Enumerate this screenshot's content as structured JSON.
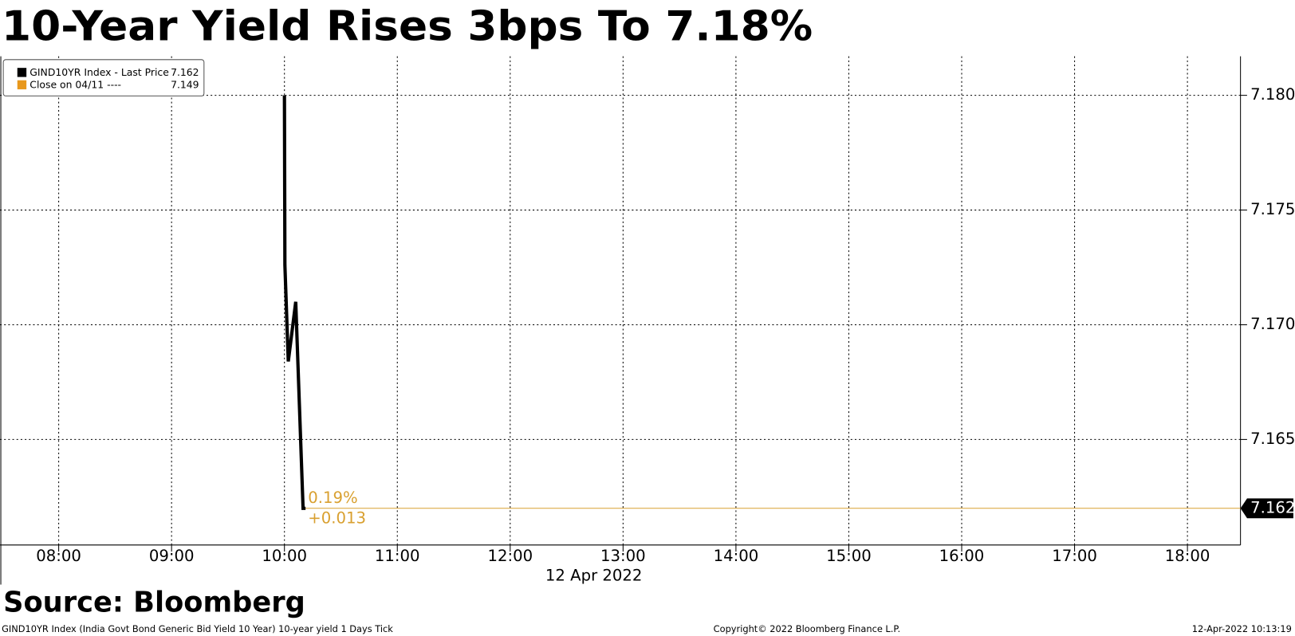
{
  "chart_data": {
    "type": "line",
    "title": "10-Year Yield Rises 3bps To 7.18%",
    "x_label": "12 Apr 2022",
    "source": "Source: Bloomberg",
    "footer_left": "GIND10YR Index (India Govt Bond Generic Bid Yield 10 Year) 10-year yield 1 Days  Tick",
    "footer_center": "Copyright© 2022 Bloomberg Finance L.P.",
    "footer_right": "12-Apr-2022 10:13:19",
    "x": [
      10.0,
      10.004,
      10.034,
      10.1,
      10.165,
      10.187
    ],
    "series": [
      {
        "name": "GIND10YR Index - Last Price",
        "color": "#000000",
        "values": [
          7.18,
          7.1726,
          7.1684,
          7.171,
          7.162,
          7.162
        ]
      }
    ],
    "legend": [
      {
        "name": "GIND10YR Index - Last Price",
        "color": "#000000",
        "value": 7.162
      },
      {
        "name": "Close on 04/11 ----",
        "color": "#e8981c",
        "value": 7.149
      }
    ],
    "last_price": 7.162,
    "last_price_color": "#d9a030",
    "annotations": [
      "0.19%",
      "+0.013"
    ],
    "xlim": [
      7.48,
      18.47
    ],
    "xticks": [
      {
        "value": 8,
        "label": "08:00"
      },
      {
        "value": 9,
        "label": "09:00"
      },
      {
        "value": 10,
        "label": "10:00"
      },
      {
        "value": 11,
        "label": "11:00"
      },
      {
        "value": 12,
        "label": "12:00"
      },
      {
        "value": 13,
        "label": "13:00"
      },
      {
        "value": 14,
        "label": "14:00"
      },
      {
        "value": 15,
        "label": "15:00"
      },
      {
        "value": 16,
        "label": "16:00"
      },
      {
        "value": 17,
        "label": "17:00"
      },
      {
        "value": 18,
        "label": "18:00"
      }
    ],
    "ylim": [
      7.1604,
      7.1817
    ],
    "yticks": [
      {
        "value": 7.165,
        "label": "7.165"
      },
      {
        "value": 7.17,
        "label": "7.170"
      },
      {
        "value": 7.175,
        "label": "7.175"
      },
      {
        "value": 7.18,
        "label": "7.180"
      }
    ],
    "grid": true
  }
}
